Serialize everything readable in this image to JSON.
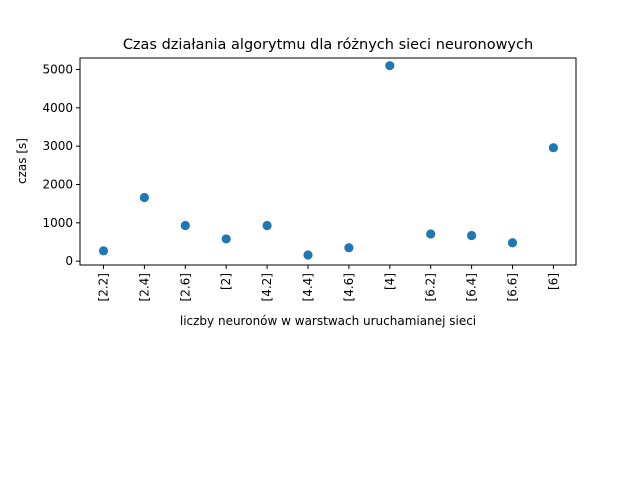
{
  "chart_data": {
    "type": "scatter",
    "title": "Czas działania algorytmu dla różnych sieci neuronowych",
    "xlabel": "liczby neuronów w warstwach uruchamianej sieci",
    "ylabel": "czas [s]",
    "categories": [
      "[2.2]",
      "[2.4]",
      "[2.6]",
      "[2]",
      "[4.2]",
      "[4.4]",
      "[4.6]",
      "[4]",
      "[6.2]",
      "[6.4]",
      "[6.6]",
      "[6]"
    ],
    "values": [
      270,
      1660,
      930,
      580,
      930,
      160,
      350,
      5100,
      710,
      670,
      480,
      2960
    ],
    "yticks": [
      0,
      1000,
      2000,
      3000,
      4000,
      5000
    ],
    "ylim": [
      -100,
      5300
    ],
    "grid": false,
    "marker_color": "#1f77b4"
  }
}
